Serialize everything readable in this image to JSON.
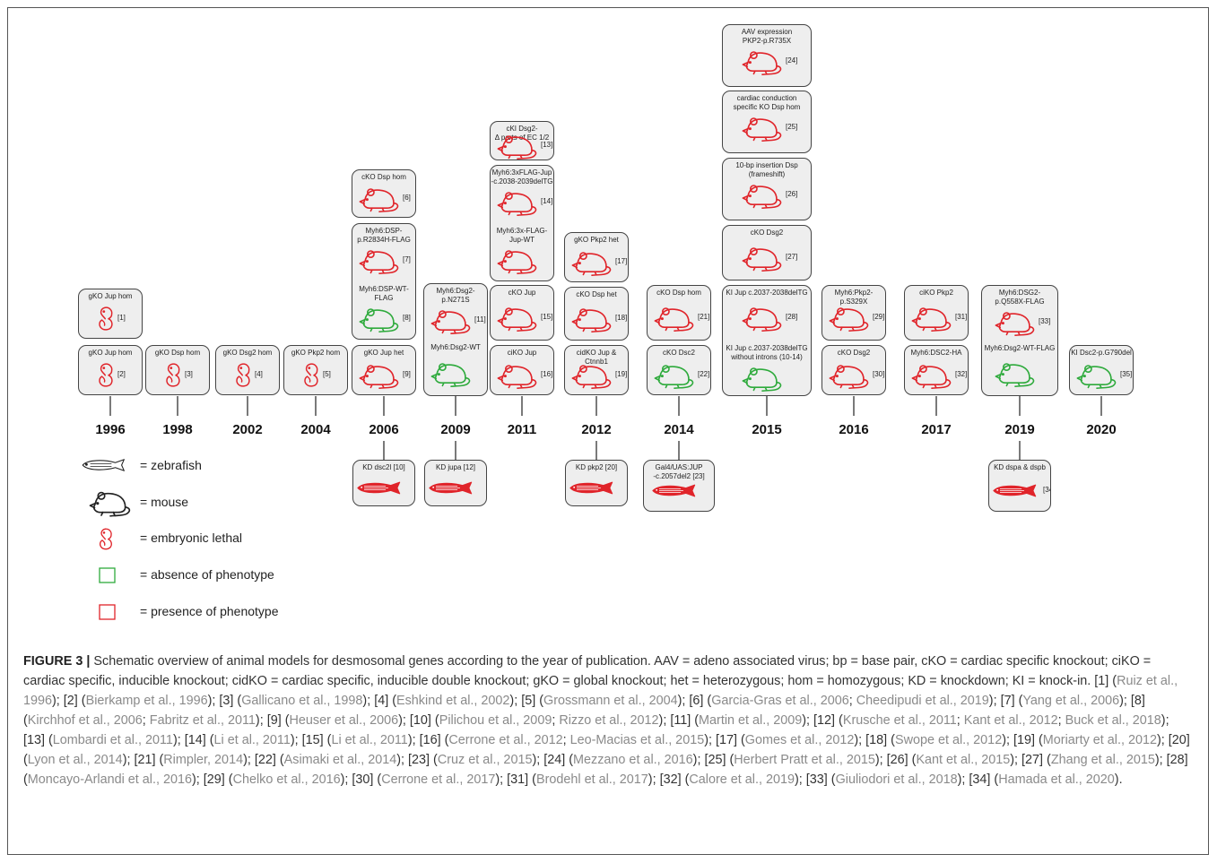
{
  "legend": [
    {
      "icon": "zebrafish",
      "label": "= zebrafish"
    },
    {
      "icon": "mouse",
      "label": "= mouse"
    },
    {
      "icon": "embryo",
      "label": "= embryonic lethal"
    },
    {
      "icon": "green-square",
      "label": "= absence of phenotype"
    },
    {
      "icon": "red-square",
      "label": "= presence of phenotype"
    }
  ],
  "colors": {
    "phenotype": "#e0242a",
    "no_phenotype": "#2eaa3c",
    "box_fill": "#eeeeee",
    "box_border": "#444444"
  },
  "years": [
    "1996",
    "1998",
    "2002",
    "2004",
    "2006",
    "2009",
    "2011",
    "2012",
    "2014",
    "2015",
    "2016",
    "2017",
    "2019",
    "2020"
  ],
  "models": [
    {
      "text": [
        "gKO Jup hom"
      ],
      "ref": "[1]",
      "icon": "embryo",
      "color": "red"
    },
    {
      "text": [
        "gKO Jup hom"
      ],
      "ref": "[2]",
      "icon": "embryo",
      "color": "red"
    },
    {
      "text": [
        "gKO Dsp hom"
      ],
      "ref": "[3]",
      "icon": "embryo",
      "color": "red"
    },
    {
      "text": [
        "gKO Dsg2 hom"
      ],
      "ref": "[4]",
      "icon": "embryo",
      "color": "red"
    },
    {
      "text": [
        "gKO Pkp2 hom"
      ],
      "ref": "[5]",
      "icon": "embryo",
      "color": "red"
    },
    {
      "text": [
        "cKO Dsp hom"
      ],
      "ref": "[6]",
      "icon": "mouse",
      "color": "red"
    },
    {
      "text": [
        "Myh6:DSP-",
        "p.R2834H-FLAG"
      ],
      "ref": "[7]",
      "icon": "mouse",
      "color": "red"
    },
    {
      "text": [
        "Myh6:DSP-WT-",
        "FLAG"
      ],
      "ref": "[8]",
      "icon": "mouse",
      "color": "green"
    },
    {
      "text": [
        "gKO Jup het"
      ],
      "ref": "[9]",
      "icon": "mouse",
      "color": "red"
    },
    {
      "text": [
        "Myh6:Dsg2-",
        "p.N271S"
      ],
      "ref": "[11]",
      "icon": "mouse",
      "color": "red"
    },
    {
      "text": [
        "Myh6:Dsg2-WT"
      ],
      "ref": "",
      "icon": "mouse",
      "color": "green"
    },
    {
      "text": [
        "cKI Dsg2-",
        "Δ parts of EC 1/2"
      ],
      "ref": "[13]",
      "icon": "mouse",
      "color": "red"
    },
    {
      "text": [
        "Myh6:3xFLAG-Jup",
        "-c.2038-2039delTG"
      ],
      "ref": "[14]",
      "icon": "mouse",
      "color": "red"
    },
    {
      "text": [
        "Myh6:3x-FLAG-",
        "Jup-WT"
      ],
      "ref": "",
      "icon": "mouse",
      "color": "red"
    },
    {
      "text": [
        "cKO Jup"
      ],
      "ref": "[15]",
      "icon": "mouse",
      "color": "red"
    },
    {
      "text": [
        "ciKO Jup"
      ],
      "ref": "[16]",
      "icon": "mouse",
      "color": "red"
    },
    {
      "text": [
        "gKO Pkp2 het"
      ],
      "ref": "[17]",
      "icon": "mouse",
      "color": "red"
    },
    {
      "text": [
        "cKO Dsp het"
      ],
      "ref": "[18]",
      "icon": "mouse",
      "color": "red"
    },
    {
      "text": [
        "cidKO Jup & Ctnnb1"
      ],
      "ref": "[19]",
      "icon": "mouse",
      "color": "red"
    },
    {
      "text": [
        "cKO Dsp hom"
      ],
      "ref": "[21]",
      "icon": "mouse",
      "color": "red"
    },
    {
      "text": [
        "cKO Dsc2"
      ],
      "ref": "[22]",
      "icon": "mouse",
      "color": "green"
    },
    {
      "text": [
        "AAV expression",
        "PKP2-p.R735X"
      ],
      "ref": "[24]",
      "icon": "mouse",
      "color": "red"
    },
    {
      "text": [
        "cardiac conduction",
        "specific KO Dsp hom"
      ],
      "ref": "[25]",
      "icon": "mouse",
      "color": "red"
    },
    {
      "text": [
        "10-bp insertion Dsp",
        "(frameshift)"
      ],
      "ref": "[26]",
      "icon": "mouse",
      "color": "red"
    },
    {
      "text": [
        "cKO Dsg2"
      ],
      "ref": "[27]",
      "icon": "mouse",
      "color": "red"
    },
    {
      "text": [
        "KI Jup c.2037-2038delTG"
      ],
      "ref": "[28]",
      "icon": "mouse",
      "color": "red"
    },
    {
      "text": [
        "KI Jup c.2037-2038delTG",
        "without introns (10-14)"
      ],
      "ref": "",
      "icon": "mouse",
      "color": "green"
    },
    {
      "text": [
        "Myh6:Pkp2-p.S329X"
      ],
      "ref": "[29]",
      "icon": "mouse",
      "color": "red"
    },
    {
      "text": [
        "cKO Dsg2"
      ],
      "ref": "[30]",
      "icon": "mouse",
      "color": "red"
    },
    {
      "text": [
        "ciKO Pkp2"
      ],
      "ref": "[31]",
      "icon": "mouse",
      "color": "red"
    },
    {
      "text": [
        "Myh6:DSC2-HA"
      ],
      "ref": "[32]",
      "icon": "mouse",
      "color": "red"
    },
    {
      "text": [
        "Myh6:DSG2-",
        "p.Q558X-FLAG"
      ],
      "ref": "[33]",
      "icon": "mouse",
      "color": "red"
    },
    {
      "text": [
        "Myh6:Dsg2-WT-FLAG"
      ],
      "ref": "",
      "icon": "mouse",
      "color": "green"
    },
    {
      "text": [
        "KI Dsc2-p.G790del"
      ],
      "ref": "[35]",
      "icon": "mouse",
      "color": "green"
    },
    {
      "text": [
        "KD dsc2l [10]"
      ],
      "ref": "",
      "icon": "fish",
      "color": "red"
    },
    {
      "text": [
        "KD jupa [12]"
      ],
      "ref": "",
      "icon": "fish",
      "color": "red"
    },
    {
      "text": [
        "KD pkp2 [20]"
      ],
      "ref": "",
      "icon": "fish",
      "color": "red"
    },
    {
      "text": [
        "Gal4/UAS:JUP",
        "-c.2057del2 [23]"
      ],
      "ref": "",
      "icon": "fish",
      "color": "red"
    },
    {
      "text": [
        "KD dspa & dspb"
      ],
      "ref": "[34]",
      "icon": "fish",
      "color": "red"
    }
  ],
  "caption": {
    "label": "FIGURE 3 |",
    "parts": [
      {
        "t": " Schematic overview of animal models for desmosomal genes according to the year of publication. AAV = adeno associated virus; bp = base pair, cKO = cardiac specific knockout; ciKO = cardiac specific, inducible knockout; cidKO = cardiac specific, inducible double knockout; gKO = global knockout; het = heterozygous; hom = homozygous; KD = knockdown; KI = knock-in. [1] ("
      },
      {
        "t": "Ruiz et al., 1996",
        "link": true
      },
      {
        "t": "); [2] ("
      },
      {
        "t": "Bierkamp et al., 1996",
        "link": true
      },
      {
        "t": "); [3] ("
      },
      {
        "t": "Gallicano et al., 1998",
        "link": true
      },
      {
        "t": "); [4] ("
      },
      {
        "t": "Eshkind et al., 2002",
        "link": true
      },
      {
        "t": "); [5] ("
      },
      {
        "t": "Grossmann et al., 2004",
        "link": true
      },
      {
        "t": "); [6] ("
      },
      {
        "t": "Garcia-Gras et al., 2006",
        "link": true
      },
      {
        "t": "; "
      },
      {
        "t": "Cheedipudi et al., 2019",
        "link": true
      },
      {
        "t": "); [7] ("
      },
      {
        "t": "Yang et al., 2006",
        "link": true
      },
      {
        "t": "); [8] ("
      },
      {
        "t": "Kirchhof et al., 2006",
        "link": true
      },
      {
        "t": "; "
      },
      {
        "t": "Fabritz et al., 2011",
        "link": true
      },
      {
        "t": "); [9] ("
      },
      {
        "t": "Heuser et al., 2006",
        "link": true
      },
      {
        "t": "); [10] ("
      },
      {
        "t": "Pilichou et al., 2009",
        "link": true
      },
      {
        "t": "; "
      },
      {
        "t": "Rizzo et al., 2012",
        "link": true
      },
      {
        "t": "); [11] ("
      },
      {
        "t": "Martin et al., 2009",
        "link": true
      },
      {
        "t": "); [12] ("
      },
      {
        "t": "Krusche et al., 2011",
        "link": true
      },
      {
        "t": "; "
      },
      {
        "t": "Kant et al., 2012",
        "link": true
      },
      {
        "t": "; "
      },
      {
        "t": "Buck et al., 2018",
        "link": true
      },
      {
        "t": "); [13] ("
      },
      {
        "t": "Lombardi et al., 2011",
        "link": true
      },
      {
        "t": "); [14] ("
      },
      {
        "t": "Li et al., 2011",
        "link": true
      },
      {
        "t": "); [15] ("
      },
      {
        "t": "Li et al., 2011",
        "link": true
      },
      {
        "t": "); [16] ("
      },
      {
        "t": "Cerrone et al., 2012",
        "link": true
      },
      {
        "t": "; "
      },
      {
        "t": "Leo-Macias et al., 2015",
        "link": true
      },
      {
        "t": "); [17] ("
      },
      {
        "t": "Gomes et al., 2012",
        "link": true
      },
      {
        "t": "); [18] ("
      },
      {
        "t": "Swope et al., 2012",
        "link": true
      },
      {
        "t": "); [19] ("
      },
      {
        "t": "Moriarty et al., 2012",
        "link": true
      },
      {
        "t": "); [20] ("
      },
      {
        "t": "Lyon et al., 2014",
        "link": true
      },
      {
        "t": "); [21] ("
      },
      {
        "t": "Rimpler, 2014",
        "link": true
      },
      {
        "t": "); [22] ("
      },
      {
        "t": "Asimaki et al., 2014",
        "link": true
      },
      {
        "t": "); [23] ("
      },
      {
        "t": "Cruz et al., 2015",
        "link": true
      },
      {
        "t": "); [24] ("
      },
      {
        "t": "Mezzano et al., 2016",
        "link": true
      },
      {
        "t": "); [25] ("
      },
      {
        "t": "Herbert Pratt et al., 2015",
        "link": true
      },
      {
        "t": "); [26] ("
      },
      {
        "t": "Kant et al., 2015",
        "link": true
      },
      {
        "t": "); [27] ("
      },
      {
        "t": "Zhang et al., 2015",
        "link": true
      },
      {
        "t": "); [28] ("
      },
      {
        "t": "Moncayo-Arlandi et al., 2016",
        "link": true
      },
      {
        "t": "); [29] ("
      },
      {
        "t": "Chelko et al., 2016",
        "link": true
      },
      {
        "t": "); [30] ("
      },
      {
        "t": "Cerrone et al., 2017",
        "link": true
      },
      {
        "t": "); [31] ("
      },
      {
        "t": "Brodehl et al., 2017",
        "link": true
      },
      {
        "t": "); [32] ("
      },
      {
        "t": "Calore et al., 2019",
        "link": true
      },
      {
        "t": "); [33] ("
      },
      {
        "t": "Giuliodori et al., 2018",
        "link": true
      },
      {
        "t": "); [34] ("
      },
      {
        "t": "Hamada et al., 2020",
        "link": true
      },
      {
        "t": ")."
      }
    ]
  }
}
